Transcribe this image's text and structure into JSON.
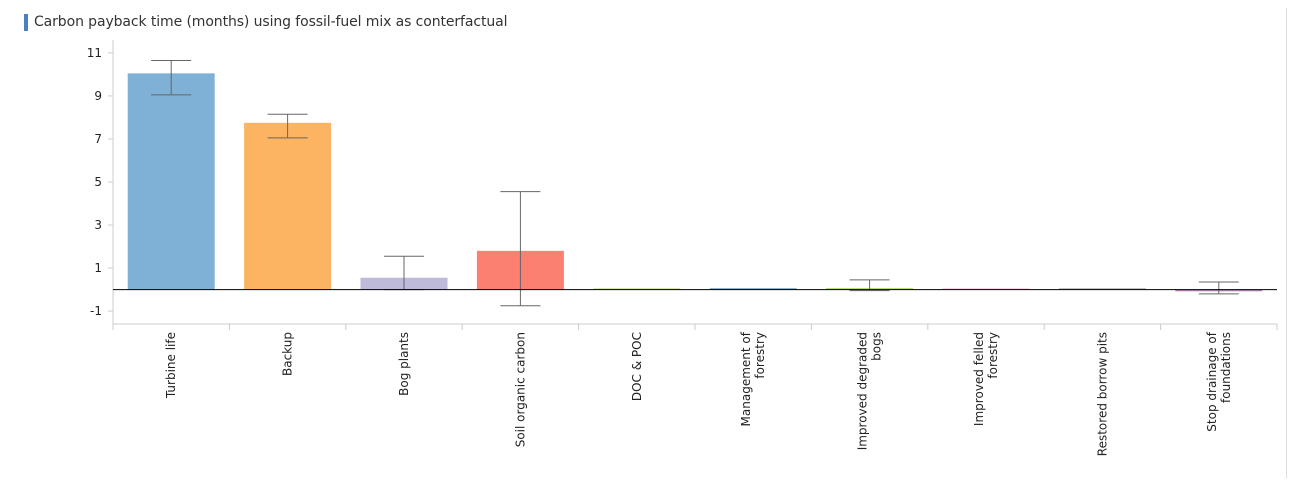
{
  "chart_data": {
    "type": "bar",
    "title": "Carbon payback time (months) using fossil-fuel mix as conterfactual",
    "ylim": [
      -1.6,
      11.6
    ],
    "yticks": [
      11,
      9,
      7,
      5,
      3,
      1,
      -1
    ],
    "grid": false,
    "categories": [
      "Turbine life",
      "Backup",
      "Bog plants",
      "Soil organic carbon",
      "DOC & POC",
      "Management of forestry",
      "Improved degraded bogs",
      "Improved felled forestry",
      "Restored borrow pits",
      "Stop drainage of foundations"
    ],
    "category_lines": [
      [
        "Turbine life"
      ],
      [
        "Backup"
      ],
      [
        "Bog plants"
      ],
      [
        "Soil organic carbon"
      ],
      [
        "DOC & POC"
      ],
      [
        "Management of",
        "forestry"
      ],
      [
        "Improved degraded",
        "bogs"
      ],
      [
        "Improved felled",
        "forestry"
      ],
      [
        "Restored borrow pits"
      ],
      [
        "Stop drainage of",
        "foundations"
      ]
    ],
    "values": [
      10.05,
      7.75,
      0.55,
      1.8,
      0.03,
      0.05,
      0.07,
      0.02,
      0.05,
      -0.08
    ],
    "error_low": [
      9.05,
      7.05,
      0.0,
      -0.75,
      0.03,
      0.05,
      -0.05,
      0.02,
      0.05,
      -0.2
    ],
    "error_high": [
      10.65,
      8.15,
      1.55,
      4.55,
      0.03,
      0.05,
      0.45,
      0.02,
      0.05,
      0.35
    ],
    "colors": [
      "#7fb0d5",
      "#fdb462",
      "#bebada",
      "#fb8072",
      "#d2e8a0",
      "#80b1d3",
      "#b3de69",
      "#fccde5",
      "#bdbdbd",
      "#bc80bd"
    ]
  },
  "style": {
    "title_marker_color": "#4a7fc1",
    "axis_color": "#cccccc",
    "zero_line_color": "#000000",
    "error_bar_color": "#666666"
  }
}
